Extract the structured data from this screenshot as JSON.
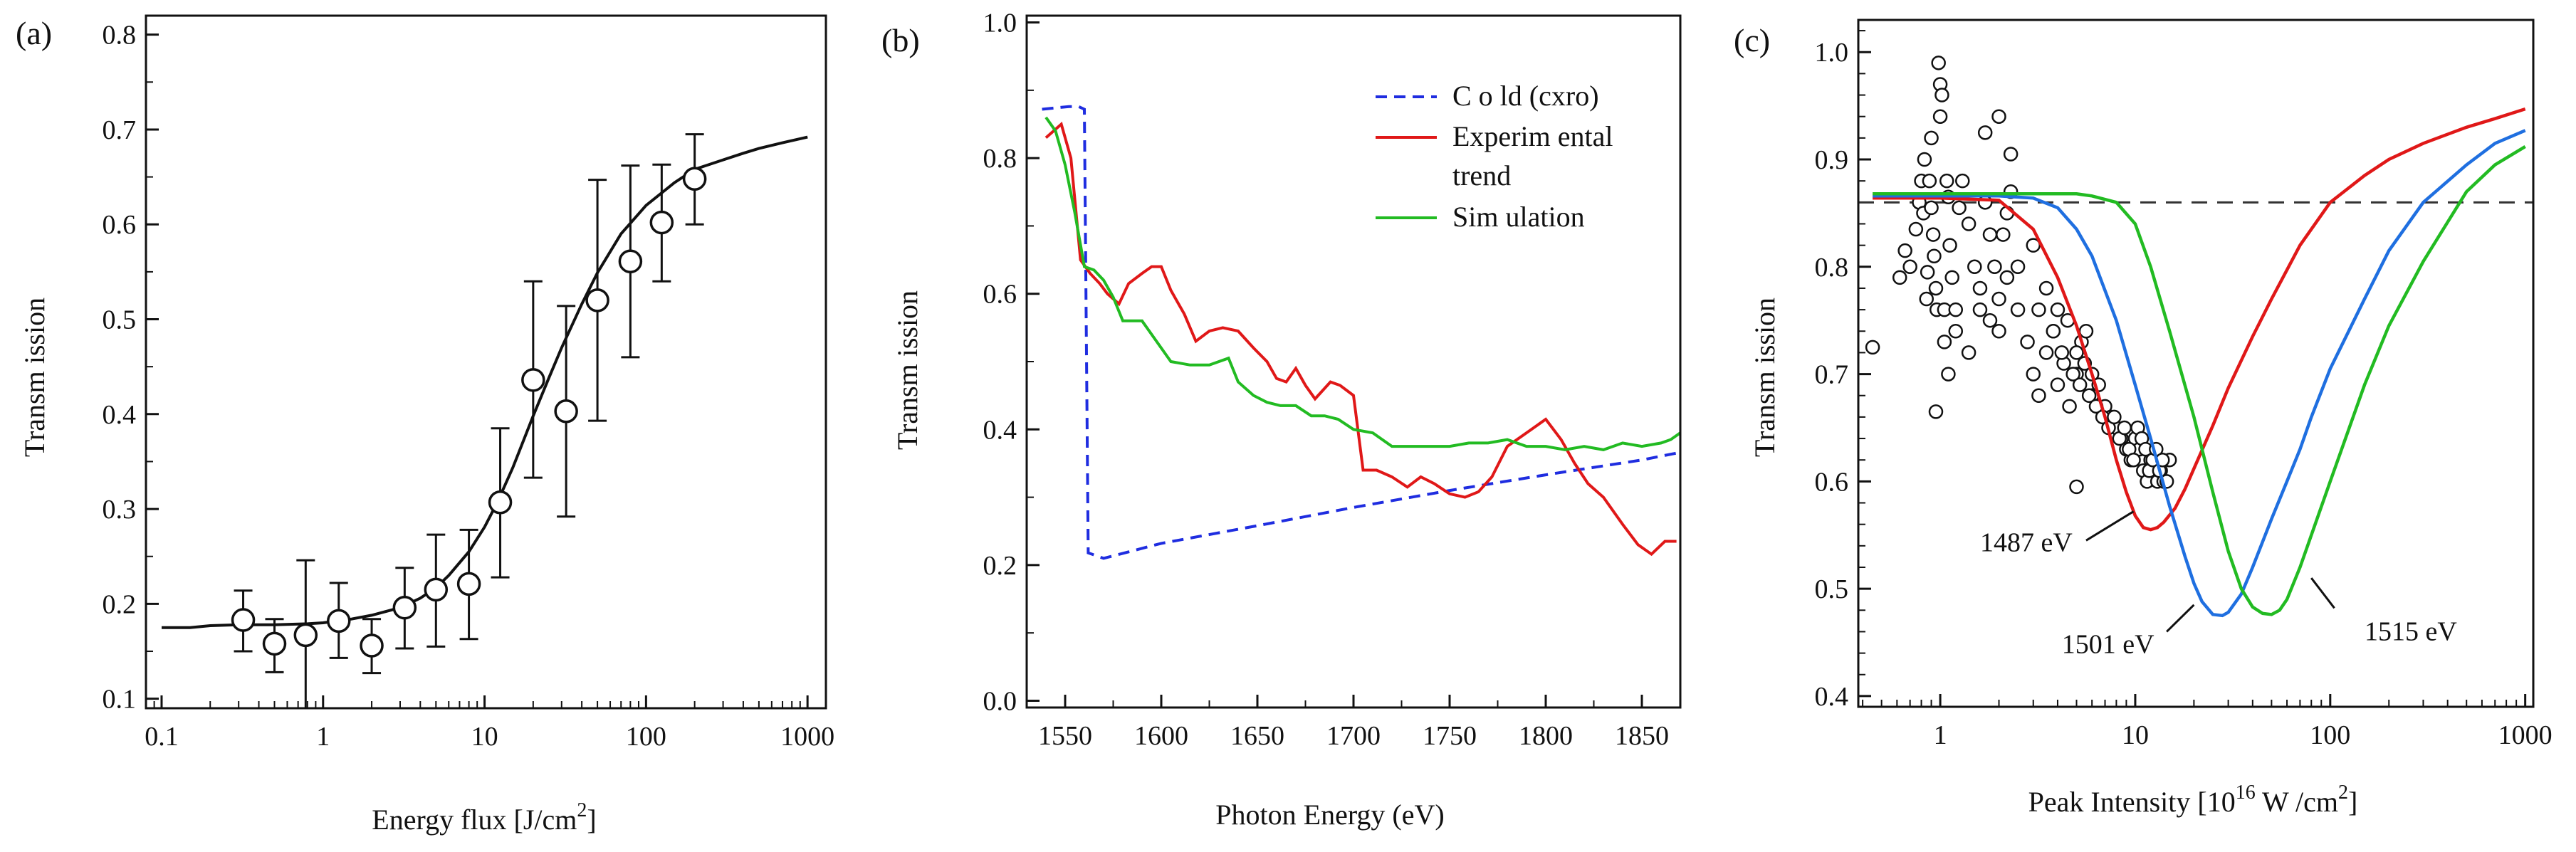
{
  "chart_data": [
    {
      "type": "scatter",
      "panel_label": "(a)",
      "xlabel": "Energy flux [J/cm",
      "xlabel_sup": "2",
      "xlabel_end": "]",
      "ylabel": "Transm ission",
      "xscale": "log",
      "xlim": [
        0.08,
        1300
      ],
      "ylim": [
        0.09,
        0.82
      ],
      "xticks": [
        {
          "v": 0.1,
          "label": "0.1"
        },
        {
          "v": 1,
          "label": "1"
        },
        {
          "v": 10,
          "label": "10"
        },
        {
          "v": 100,
          "label": "100"
        },
        {
          "v": 1000,
          "label": "1000"
        }
      ],
      "yticks": [
        {
          "v": 0.1,
          "label": "0.1"
        },
        {
          "v": 0.2,
          "label": "0.2"
        },
        {
          "v": 0.3,
          "label": "0.3"
        },
        {
          "v": 0.4,
          "label": "0.4"
        },
        {
          "v": 0.5,
          "label": "0.5"
        },
        {
          "v": 0.6,
          "label": "0.6"
        },
        {
          "v": 0.7,
          "label": "0.7"
        },
        {
          "v": 0.8,
          "label": "0.8"
        }
      ],
      "points": [
        {
          "x": 0.32,
          "y": 0.183,
          "lo": 0.15,
          "hi": 0.214
        },
        {
          "x": 0.5,
          "y": 0.158,
          "lo": 0.128,
          "hi": 0.184
        },
        {
          "x": 0.78,
          "y": 0.167,
          "lo": 0.09,
          "hi": 0.246
        },
        {
          "x": 1.25,
          "y": 0.182,
          "lo": 0.143,
          "hi": 0.222
        },
        {
          "x": 2.0,
          "y": 0.156,
          "lo": 0.127,
          "hi": 0.184
        },
        {
          "x": 3.2,
          "y": 0.196,
          "lo": 0.153,
          "hi": 0.238
        },
        {
          "x": 5.0,
          "y": 0.215,
          "lo": 0.155,
          "hi": 0.273
        },
        {
          "x": 8.0,
          "y": 0.221,
          "lo": 0.163,
          "hi": 0.278
        },
        {
          "x": 12.5,
          "y": 0.307,
          "lo": 0.228,
          "hi": 0.385
        },
        {
          "x": 20.0,
          "y": 0.436,
          "lo": 0.333,
          "hi": 0.54
        },
        {
          "x": 32.0,
          "y": 0.403,
          "lo": 0.292,
          "hi": 0.514
        },
        {
          "x": 50.0,
          "y": 0.52,
          "lo": 0.393,
          "hi": 0.647
        },
        {
          "x": 80.0,
          "y": 0.561,
          "lo": 0.46,
          "hi": 0.662
        },
        {
          "x": 125,
          "y": 0.602,
          "lo": 0.54,
          "hi": 0.663
        },
        {
          "x": 200,
          "y": 0.648,
          "lo": 0.6,
          "hi": 0.695
        }
      ],
      "fit_curve": {
        "x": [
          0.1,
          0.15,
          0.2,
          0.3,
          0.5,
          0.8,
          1,
          1.5,
          2,
          3,
          4,
          5,
          6,
          8,
          10,
          12,
          15,
          20,
          25,
          30,
          40,
          50,
          70,
          100,
          150,
          200,
          300,
          400,
          500,
          700,
          1000
        ],
        "y": [
          0.175,
          0.175,
          0.177,
          0.178,
          0.178,
          0.179,
          0.18,
          0.184,
          0.188,
          0.196,
          0.206,
          0.217,
          0.23,
          0.255,
          0.281,
          0.307,
          0.344,
          0.398,
          0.438,
          0.47,
          0.516,
          0.549,
          0.59,
          0.62,
          0.644,
          0.658,
          0.668,
          0.675,
          0.68,
          0.686,
          0.692
        ]
      }
    },
    {
      "type": "line",
      "panel_label": "(b)",
      "xlabel": "Photon Energy (eV)",
      "ylabel": "Transm ission",
      "xlim": [
        1530,
        1870
      ],
      "ylim": [
        -0.01,
        1.01
      ],
      "xticks": [
        {
          "v": 1550,
          "label": "1550"
        },
        {
          "v": 1600,
          "label": "1600"
        },
        {
          "v": 1650,
          "label": "1650"
        },
        {
          "v": 1700,
          "label": "1700"
        },
        {
          "v": 1750,
          "label": "1750"
        },
        {
          "v": 1800,
          "label": "1800"
        },
        {
          "v": 1850,
          "label": "1850"
        }
      ],
      "yticks": [
        {
          "v": 0.0,
          "label": "0.0"
        },
        {
          "v": 0.2,
          "label": "0.2"
        },
        {
          "v": 0.4,
          "label": "0.4"
        },
        {
          "v": 0.6,
          "label": "0.6"
        },
        {
          "v": 0.8,
          "label": "0.8"
        },
        {
          "v": 1.0,
          "label": "1.0"
        }
      ],
      "legend": [
        {
          "label": "C o ld (cxro)",
          "color": "#1f2de0",
          "dash": true
        },
        {
          "label": "Experim ental",
          "label2": "trend",
          "color": "#e01818",
          "dash": false
        },
        {
          "label": "Sim ulation",
          "color": "#22bb22",
          "dash": false
        }
      ],
      "series": [
        {
          "name": "C o ld (cxro)",
          "color": "#1f2de0",
          "dash": true,
          "x": [
            1538,
            1552,
            1557,
            1560,
            1562,
            1570,
            1600,
            1650,
            1700,
            1750,
            1800,
            1850,
            1868
          ],
          "y": [
            0.872,
            0.876,
            0.876,
            0.872,
            0.218,
            0.21,
            0.232,
            0.258,
            0.285,
            0.31,
            0.333,
            0.355,
            0.365
          ]
        },
        {
          "name": "Experim ental",
          "color": "#e01818",
          "dash": false,
          "x": [
            1540,
            1548,
            1553,
            1558,
            1563,
            1568,
            1572,
            1578,
            1583,
            1590,
            1595,
            1600,
            1605,
            1612,
            1618,
            1625,
            1632,
            1640,
            1648,
            1655,
            1660,
            1665,
            1670,
            1675,
            1680,
            1688,
            1693,
            1700,
            1705,
            1712,
            1720,
            1728,
            1735,
            1742,
            1750,
            1758,
            1765,
            1772,
            1780,
            1790,
            1800,
            1808,
            1815,
            1822,
            1830,
            1840,
            1848,
            1855,
            1862,
            1868
          ],
          "y": [
            0.83,
            0.85,
            0.8,
            0.65,
            0.63,
            0.615,
            0.6,
            0.585,
            0.615,
            0.63,
            0.64,
            0.64,
            0.605,
            0.57,
            0.53,
            0.545,
            0.55,
            0.545,
            0.52,
            0.5,
            0.475,
            0.47,
            0.49,
            0.465,
            0.445,
            0.47,
            0.465,
            0.45,
            0.34,
            0.34,
            0.33,
            0.315,
            0.33,
            0.32,
            0.305,
            0.3,
            0.308,
            0.33,
            0.375,
            0.395,
            0.415,
            0.385,
            0.35,
            0.32,
            0.3,
            0.26,
            0.23,
            0.216,
            0.235,
            0.235
          ]
        },
        {
          "name": "Sim ulation",
          "color": "#22bb22",
          "dash": false,
          "x": [
            1540,
            1545,
            1550,
            1555,
            1560,
            1565,
            1570,
            1575,
            1580,
            1590,
            1595,
            1605,
            1615,
            1625,
            1635,
            1640,
            1648,
            1655,
            1662,
            1670,
            1678,
            1685,
            1692,
            1700,
            1710,
            1720,
            1730,
            1740,
            1750,
            1760,
            1770,
            1780,
            1790,
            1800,
            1810,
            1820,
            1830,
            1840,
            1850,
            1860,
            1865,
            1870
          ],
          "y": [
            0.86,
            0.84,
            0.79,
            0.72,
            0.64,
            0.635,
            0.62,
            0.595,
            0.56,
            0.56,
            0.54,
            0.5,
            0.495,
            0.495,
            0.505,
            0.47,
            0.45,
            0.44,
            0.435,
            0.435,
            0.42,
            0.42,
            0.415,
            0.4,
            0.395,
            0.375,
            0.375,
            0.375,
            0.375,
            0.38,
            0.38,
            0.385,
            0.375,
            0.375,
            0.37,
            0.375,
            0.37,
            0.38,
            0.375,
            0.38,
            0.385,
            0.395
          ]
        }
      ]
    },
    {
      "type": "line",
      "panel_label": "(c)",
      "xlabel": "Peak Intensity [10",
      "xlabel_sup": "16",
      "xlabel_mid": " W /cm",
      "xlabel_sup2": "2",
      "xlabel_end": "]",
      "ylabel": "Transm ission",
      "xscale": "log",
      "xlim": [
        0.38,
        1100
      ],
      "ylim": [
        0.39,
        1.03
      ],
      "xticks": [
        {
          "v": 1,
          "label": "1"
        },
        {
          "v": 10,
          "label": "10"
        },
        {
          "v": 100,
          "label": "100"
        },
        {
          "v": 1000,
          "label": "1000"
        }
      ],
      "yticks": [
        {
          "v": 0.4,
          "label": "0.4"
        },
        {
          "v": 0.5,
          "label": "0.5"
        },
        {
          "v": 0.6,
          "label": "0.6"
        },
        {
          "v": 0.7,
          "label": "0.7"
        },
        {
          "v": 0.8,
          "label": "0.8"
        },
        {
          "v": 0.9,
          "label": "0.9"
        },
        {
          "v": 1.0,
          "label": "1.0"
        }
      ],
      "reference_line": {
        "y": 0.86,
        "dash": true
      },
      "annotations": [
        {
          "text": "1487 eV",
          "tx": 1.6,
          "ty": 0.535,
          "lx1": 5.6,
          "ly1": 0.545,
          "lx2": 9.8,
          "ly2": 0.572
        },
        {
          "text": "1501 eV",
          "tx": 4.2,
          "ty": 0.44,
          "lx1": 14.5,
          "ly1": 0.46,
          "lx2": 20,
          "ly2": 0.485
        },
        {
          "text": "1515 eV",
          "tx": 150,
          "ty": 0.452,
          "lx1": 105,
          "ly1": 0.482,
          "lx2": 80,
          "ly2": 0.51
        }
      ],
      "series": [
        {
          "name": "1487 eV",
          "color": "#e01818",
          "x": [
            0.45,
            1,
            2,
            3,
            4,
            5,
            6,
            7,
            8,
            9,
            10,
            11,
            12,
            13,
            14,
            16,
            18,
            20,
            25,
            30,
            40,
            50,
            70,
            100,
            150,
            200,
            300,
            500,
            700,
            1000
          ],
          "y": [
            0.864,
            0.864,
            0.862,
            0.835,
            0.79,
            0.745,
            0.7,
            0.66,
            0.62,
            0.59,
            0.568,
            0.557,
            0.555,
            0.557,
            0.562,
            0.575,
            0.593,
            0.612,
            0.652,
            0.687,
            0.735,
            0.77,
            0.82,
            0.86,
            0.885,
            0.9,
            0.915,
            0.93,
            0.938,
            0.947
          ]
        },
        {
          "name": "1501 eV",
          "color": "#1f6fe0",
          "x": [
            0.45,
            1,
            2,
            3,
            4,
            5,
            6,
            8,
            10,
            12,
            15,
            18,
            20,
            22,
            25,
            28,
            30,
            35,
            40,
            50,
            60,
            70,
            80,
            100,
            150,
            200,
            300,
            500,
            700,
            1000
          ],
          "y": [
            0.866,
            0.866,
            0.866,
            0.864,
            0.855,
            0.835,
            0.81,
            0.75,
            0.69,
            0.64,
            0.577,
            0.53,
            0.505,
            0.488,
            0.476,
            0.475,
            0.478,
            0.495,
            0.52,
            0.565,
            0.6,
            0.63,
            0.66,
            0.705,
            0.77,
            0.815,
            0.86,
            0.895,
            0.915,
            0.927
          ]
        },
        {
          "name": "1515 eV",
          "color": "#22bb22",
          "x": [
            0.45,
            1,
            3,
            5,
            6,
            8,
            10,
            12,
            15,
            20,
            25,
            30,
            35,
            40,
            45,
            50,
            55,
            60,
            70,
            80,
            100,
            150,
            200,
            300,
            500,
            700,
            1000
          ],
          "y": [
            0.868,
            0.868,
            0.868,
            0.868,
            0.866,
            0.86,
            0.84,
            0.8,
            0.74,
            0.66,
            0.59,
            0.535,
            0.5,
            0.483,
            0.477,
            0.476,
            0.48,
            0.49,
            0.52,
            0.55,
            0.6,
            0.69,
            0.745,
            0.805,
            0.87,
            0.895,
            0.912
          ]
        }
      ],
      "scatter_x": [
        0.45,
        0.62,
        0.66,
        0.7,
        0.75,
        0.78,
        0.8,
        0.82,
        0.83,
        0.85,
        0.86,
        0.88,
        0.9,
        0.9,
        0.92,
        0.93,
        0.95,
        0.96,
        0.98,
        1.0,
        1.0,
        1.02,
        1.05,
        1.05,
        1.08,
        1.1,
        1.12,
        1.15,
        1.2,
        1.25,
        1.3,
        1.4,
        1.5,
        1.6,
        1.7,
        1.8,
        1.9,
        2.0,
        2.1,
        2.2,
        2.3,
        1.1,
        1.2,
        1.4,
        1.6,
        1.8,
        2.0,
        2.2,
        2.5,
        2.8,
        3.0,
        3.2,
        3.5,
        3.8,
        4.0,
        4.3,
        4.6,
        5.0,
        5.3,
        5.6,
        6.0,
        2.5,
        3.0,
        3.5,
        4.0,
        4.5,
        5.0,
        5.5,
        6.0,
        6.5,
        7.0,
        7.5,
        8.0,
        8.5,
        9.0,
        9.5,
        10.0,
        10.5,
        11.0,
        11.5,
        12.0,
        12.5,
        13.0,
        13.5,
        14.0,
        15.0,
        3.2,
        3.8,
        4.2,
        4.8,
        5.2,
        5.8,
        6.3,
        6.8,
        7.3,
        7.8,
        8.3,
        8.8,
        9.3,
        9.8,
        10.3,
        10.8,
        11.3,
        11.8,
        12.3,
        12.8,
        13.3,
        13.8,
        14.5,
        5.0,
        0.95,
        2.0,
        2.3,
        1.7
      ],
      "scatter_y": [
        0.725,
        0.79,
        0.815,
        0.8,
        0.835,
        0.86,
        0.88,
        0.85,
        0.9,
        0.77,
        0.795,
        0.88,
        0.92,
        0.855,
        0.83,
        0.81,
        0.78,
        0.76,
        0.99,
        0.94,
        0.97,
        0.96,
        0.73,
        0.76,
        0.88,
        0.865,
        0.82,
        0.79,
        0.76,
        0.855,
        0.88,
        0.84,
        0.8,
        0.78,
        0.86,
        0.83,
        0.8,
        0.77,
        0.83,
        0.85,
        0.87,
        0.7,
        0.74,
        0.72,
        0.76,
        0.75,
        0.74,
        0.79,
        0.76,
        0.73,
        0.7,
        0.68,
        0.72,
        0.74,
        0.69,
        0.71,
        0.67,
        0.7,
        0.73,
        0.74,
        0.68,
        0.8,
        0.82,
        0.78,
        0.76,
        0.75,
        0.72,
        0.71,
        0.7,
        0.69,
        0.67,
        0.66,
        0.65,
        0.64,
        0.63,
        0.62,
        0.64,
        0.63,
        0.61,
        0.6,
        0.62,
        0.61,
        0.6,
        0.61,
        0.6,
        0.62,
        0.76,
        0.74,
        0.72,
        0.7,
        0.69,
        0.68,
        0.67,
        0.66,
        0.65,
        0.66,
        0.64,
        0.65,
        0.63,
        0.62,
        0.65,
        0.64,
        0.63,
        0.61,
        0.62,
        0.63,
        0.61,
        0.62,
        0.6,
        0.595,
        0.665,
        0.94,
        0.905,
        0.925
      ]
    }
  ]
}
